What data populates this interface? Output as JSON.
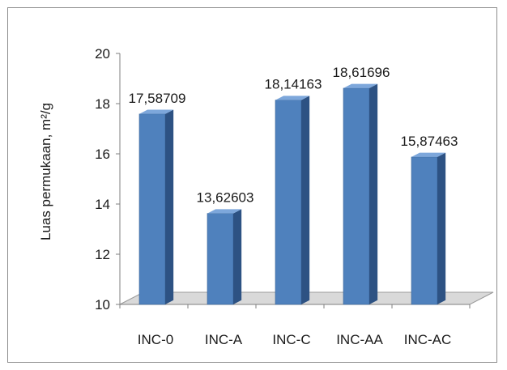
{
  "chart_data": {
    "type": "bar",
    "title": "",
    "xlabel": "",
    "ylabel": "Luas permukaan, m²/g",
    "ylim": [
      10,
      20
    ],
    "yticks": [
      "10",
      "12",
      "14",
      "16",
      "18",
      "20"
    ],
    "categories": [
      "INC-0",
      "INC-A",
      "INC-C",
      "INC-AA",
      "INC-AC"
    ],
    "values": [
      17.58709,
      13.62603,
      18.14163,
      18.61696,
      15.87463
    ],
    "data_labels": [
      "17,58709",
      "13,62603",
      "18,14163",
      "18,61696",
      "15,87463"
    ],
    "bar_style": "3d-column",
    "colors": {
      "front": "#4f81bd",
      "side": "#2d5283",
      "top": "#7da7db",
      "floor": "#d9d9d9"
    }
  }
}
